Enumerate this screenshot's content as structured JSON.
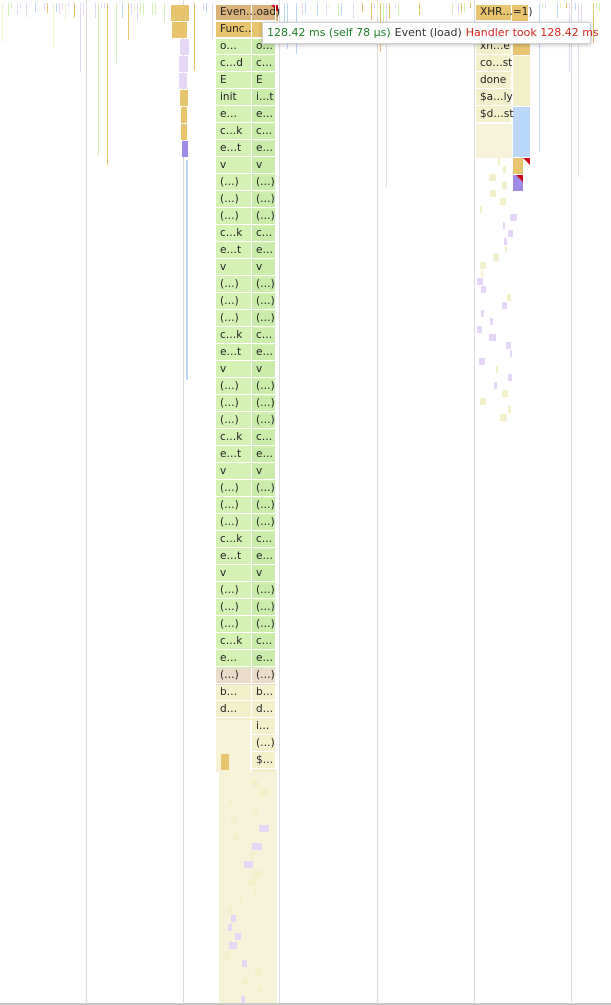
{
  "tooltip": {
    "duration": "128.42 ms (self 78 µs)",
    "event": "Event (load)",
    "warning": "Handler took 128.42 ms"
  },
  "colors": {
    "task": "#d9b27c",
    "event": "#e8c46e",
    "script_green": "#d5f2b5",
    "script_green_alt": "#c9ecab",
    "tan": "#eadcc8",
    "light_yellow": "#f3f1cc",
    "purple_light": "#e5d7f5",
    "purple": "#a08ce6",
    "blue_light": "#bcd8f8",
    "red_marker": "#e0001a"
  },
  "left_stack": {
    "col1": [
      "Even…oad)",
      "Func…C",
      "o…",
      "c…d",
      "E",
      "init",
      "e…",
      "c…k",
      "e…t",
      "v",
      "(…)",
      "(…)",
      "(…)",
      "c…k",
      "e…t",
      "v",
      "(…)",
      "(…)",
      "(…)",
      "c…k",
      "e…t",
      "v",
      "(…)",
      "(…)",
      "(…)",
      "c…k",
      "e…t",
      "v",
      "(…)",
      "(…)",
      "(…)",
      "c…k",
      "e…t",
      "v",
      "(…)",
      "(…)",
      "(…)",
      "c…k",
      "e…",
      "(…)",
      "b…",
      "d…"
    ],
    "col2": [
      "",
      "",
      "o…",
      "c…",
      "E",
      "i…t",
      "e…",
      "c…",
      "e…",
      "v",
      "(…)",
      "(…)",
      "(…)",
      "c…",
      "e…",
      "v",
      "(…)",
      "(…)",
      "(…)",
      "c…",
      "e…",
      "v",
      "(…)",
      "(…)",
      "(…)",
      "c…",
      "e…",
      "v",
      "(…)",
      "(…)",
      "(…)",
      "c…",
      "e…",
      "v",
      "(…)",
      "(…)",
      "(…)",
      "c…",
      "e…",
      "(…)",
      "b…",
      "d…",
      "i…",
      "(…)",
      "$…"
    ]
  },
  "right_stack": {
    "col1": [
      "XHR…=1)",
      "",
      "xh…e",
      "co…st",
      "done",
      "$a…ly",
      "$d…st"
    ]
  }
}
